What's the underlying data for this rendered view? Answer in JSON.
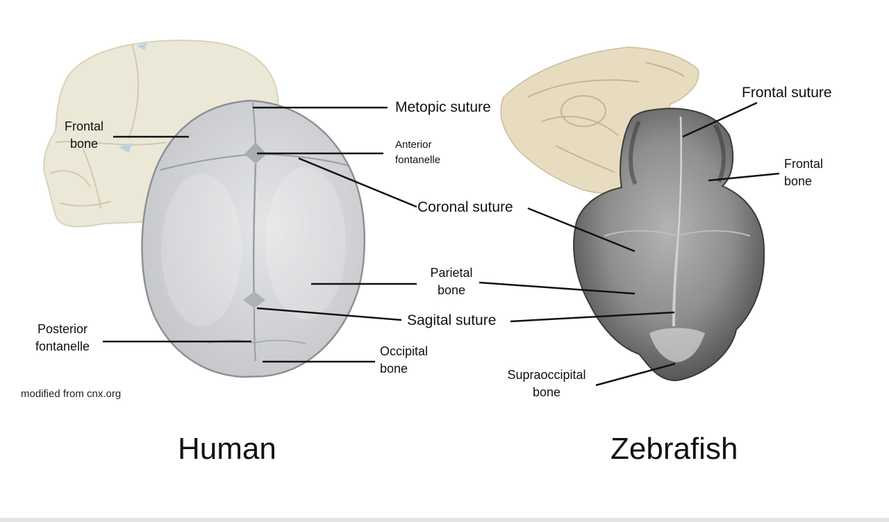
{
  "human": {
    "title": "Human",
    "credit": "modified from cnx.org",
    "labels": {
      "frontal_bone": [
        "Frontal",
        "bone"
      ],
      "metopic_suture": "Metopic suture",
      "anterior_fontanelle": [
        "Anterior",
        "fontanelle"
      ],
      "coronal_suture": "Coronal suture",
      "parietal_bone": [
        "Parietal",
        "bone"
      ],
      "sagital_suture": "Sagital suture",
      "posterior_fontanelle": [
        "Posterior",
        "fontanelle"
      ],
      "occipital_bone": [
        "Occipital",
        "bone"
      ]
    }
  },
  "zebrafish": {
    "title": "Zebrafish",
    "labels": {
      "frontal_suture": "Frontal suture",
      "frontal_bone": [
        "Frontal",
        "bone"
      ],
      "supraoccipital_bone": [
        "Supraoccipital",
        "bone"
      ]
    }
  },
  "colors": {
    "human_skull_fill": "#d4d6d8",
    "side_skull_fill": "#ece8d8",
    "fish_skull_fill": "#e7dcc0",
    "fish_scan_fill": "#8a8a8a",
    "leader_line": "#111111"
  }
}
